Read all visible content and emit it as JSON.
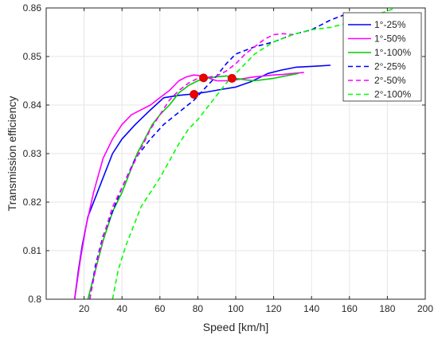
{
  "chart_data": {
    "type": "line",
    "xlabel": "Speed [km/h]",
    "ylabel": "Transmission efficiency",
    "xlim": [
      0,
      200
    ],
    "ylim": [
      0.8,
      0.86
    ],
    "xticks": [
      20,
      40,
      60,
      80,
      100,
      120,
      140,
      160,
      180,
      200
    ],
    "yticks": [
      0.8,
      0.81,
      0.82,
      0.83,
      0.84,
      0.85,
      0.86
    ],
    "xtick_labels": [
      "20",
      "40",
      "60",
      "80",
      "100",
      "120",
      "140",
      "160",
      "180",
      "200"
    ],
    "ytick_labels": [
      "0.8",
      "0.81",
      "0.82",
      "0.83",
      "0.84",
      "0.85",
      "0.86"
    ],
    "grid": true,
    "legend_position": "top-right",
    "series": [
      {
        "name": "1°-25%",
        "color": "#0000ff",
        "dash": "solid",
        "x": [
          15,
          17,
          19,
          22,
          26,
          30,
          35,
          40,
          47,
          55,
          62,
          70,
          78,
          85,
          92,
          100,
          108,
          117,
          124,
          132,
          142,
          150
        ],
        "y": [
          0.8,
          0.806,
          0.811,
          0.817,
          0.821,
          0.825,
          0.83,
          0.833,
          0.836,
          0.839,
          0.8415,
          0.842,
          0.8423,
          0.8427,
          0.8432,
          0.8437,
          0.8448,
          0.8465,
          0.8472,
          0.8478,
          0.848,
          0.8482
        ]
      },
      {
        "name": "1°-50%",
        "color": "#ff00ff",
        "dash": "solid",
        "x": [
          15,
          18,
          21,
          25,
          30,
          35,
          40,
          45,
          50,
          55,
          60,
          65,
          70,
          74,
          78,
          82,
          86,
          90,
          95,
          100,
          105,
          110,
          115,
          120,
          125,
          130,
          136
        ],
        "y": [
          0.8,
          0.808,
          0.815,
          0.822,
          0.829,
          0.833,
          0.836,
          0.838,
          0.839,
          0.84,
          0.8415,
          0.843,
          0.845,
          0.8458,
          0.8462,
          0.846,
          0.8455,
          0.845,
          0.845,
          0.8452,
          0.8455,
          0.8458,
          0.846,
          0.8462,
          0.8463,
          0.8465,
          0.8467
        ]
      },
      {
        "name": "1°-100%",
        "color": "#00cc00",
        "dash": "solid",
        "x": [
          22,
          26,
          30,
          35,
          40,
          44,
          48,
          52,
          56,
          60,
          65,
          70,
          75,
          80,
          85,
          90,
          95,
          100,
          105,
          110,
          120,
          133
        ],
        "y": [
          0.8,
          0.806,
          0.812,
          0.818,
          0.822,
          0.826,
          0.83,
          0.833,
          0.836,
          0.838,
          0.84,
          0.8425,
          0.844,
          0.845,
          0.8455,
          0.8458,
          0.846,
          0.8455,
          0.8452,
          0.845,
          0.8455,
          0.8465
        ]
      },
      {
        "name": "2°-25%",
        "color": "#0000ff",
        "dash": "dash",
        "x": [
          23,
          26,
          30,
          35,
          40,
          47,
          55,
          62,
          70,
          78,
          85,
          90,
          95,
          100,
          110,
          120,
          130,
          140,
          150,
          160
        ],
        "y": [
          0.8,
          0.807,
          0.813,
          0.818,
          0.823,
          0.829,
          0.833,
          0.836,
          0.8385,
          0.841,
          0.844,
          0.846,
          0.8485,
          0.8505,
          0.852,
          0.853,
          0.8545,
          0.8555,
          0.8575,
          0.859
        ]
      },
      {
        "name": "2°-50%",
        "color": "#ff00ff",
        "dash": "dash",
        "x": [
          23,
          27,
          31,
          35,
          40,
          45,
          50,
          55,
          60,
          65,
          70,
          75,
          80,
          85,
          90,
          95,
          100,
          105,
          110,
          115,
          120,
          125,
          130
        ],
        "y": [
          0.8,
          0.808,
          0.814,
          0.819,
          0.823,
          0.827,
          0.831,
          0.835,
          0.838,
          0.841,
          0.843,
          0.8445,
          0.8455,
          0.8457,
          0.846,
          0.847,
          0.8485,
          0.8505,
          0.852,
          0.8535,
          0.8545,
          0.8547,
          0.8545
        ]
      },
      {
        "name": "2°-100%",
        "color": "#00ff00",
        "dash": "dash",
        "x": [
          35,
          38,
          42,
          46,
          50,
          55,
          60,
          65,
          70,
          75,
          80,
          85,
          90,
          95,
          100,
          105,
          110,
          120,
          130,
          140,
          150,
          160,
          170,
          183
        ],
        "y": [
          0.8,
          0.806,
          0.811,
          0.815,
          0.819,
          0.822,
          0.825,
          0.8285,
          0.832,
          0.835,
          0.837,
          0.8395,
          0.842,
          0.8445,
          0.8465,
          0.8485,
          0.8505,
          0.853,
          0.8545,
          0.8555,
          0.856,
          0.857,
          0.858,
          0.8598
        ]
      }
    ],
    "markers": [
      {
        "x": 78,
        "y": 0.8422,
        "color": "#ee0000"
      },
      {
        "x": 83,
        "y": 0.8456,
        "color": "#ee0000"
      },
      {
        "x": 98,
        "y": 0.8455,
        "color": "#ee0000"
      }
    ]
  }
}
